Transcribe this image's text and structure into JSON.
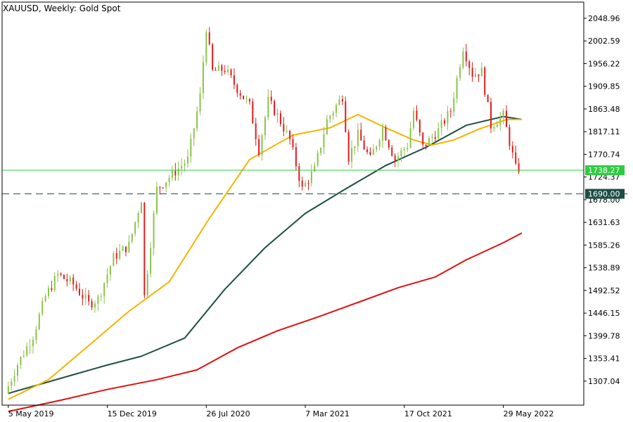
{
  "header": {
    "title": "XAUUSD, Weekly:  Gold Spot"
  },
  "colors": {
    "up": "#8bc34a",
    "down": "#e01b1b",
    "ma_fast": "#f5b400",
    "ma_mid": "#1c4e45",
    "ma_slow": "#e01010",
    "current_line": "#2ecc40",
    "level_line": "#1c4e45",
    "axis": "#000000"
  },
  "chart_data": {
    "type": "candlestick",
    "symbol": "XAUUSD",
    "timeframe": "Weekly",
    "description": "Gold Spot",
    "y_ticks": [
      "2048.96",
      "2002.59",
      "1956.22",
      "1909.85",
      "1863.48",
      "1817.11",
      "1770.74",
      "1724.37",
      "1678.00",
      "1631.63",
      "1585.26",
      "1538.89",
      "1492.52",
      "1446.15",
      "1399.78",
      "1353.41",
      "1307.04"
    ],
    "x_ticks": [
      "5 May 2019",
      "15 Dec 2019",
      "26 Jul 2020",
      "7 Mar 2021",
      "17 Oct 2021",
      "29 May 2022"
    ],
    "ylim": [
      1258,
      2082
    ],
    "current_price": "1738.27",
    "level_price": "1690.00",
    "anchors": [
      [
        "2019-05-05",
        1282
      ],
      [
        "2019-06-02",
        1342
      ],
      [
        "2019-07-07",
        1400
      ],
      [
        "2019-08-04",
        1480
      ],
      [
        "2019-09-01",
        1525
      ],
      [
        "2019-10-06",
        1505
      ],
      [
        "2019-11-10",
        1465
      ],
      [
        "2019-12-01",
        1475
      ],
      [
        "2020-01-05",
        1560
      ],
      [
        "2020-02-09",
        1585
      ],
      [
        "2020-03-08",
        1680
      ],
      [
        "2020-03-15",
        1480
      ],
      [
        "2020-04-12",
        1700
      ],
      [
        "2020-05-17",
        1730
      ],
      [
        "2020-06-21",
        1760
      ],
      [
        "2020-07-19",
        1890
      ],
      [
        "2020-08-02",
        2030
      ],
      [
        "2020-08-16",
        1940
      ],
      [
        "2020-09-13",
        1945
      ],
      [
        "2020-10-11",
        1905
      ],
      [
        "2020-11-08",
        1870
      ],
      [
        "2020-11-29",
        1780
      ],
      [
        "2020-12-20",
        1880
      ],
      [
        "2021-01-10",
        1850
      ],
      [
        "2021-02-07",
        1800
      ],
      [
        "2021-03-07",
        1700
      ],
      [
        "2021-04-04",
        1740
      ],
      [
        "2021-05-02",
        1840
      ],
      [
        "2021-06-06",
        1890
      ],
      [
        "2021-06-20",
        1765
      ],
      [
        "2021-07-11",
        1810
      ],
      [
        "2021-08-08",
        1760
      ],
      [
        "2021-09-05",
        1825
      ],
      [
        "2021-10-03",
        1760
      ],
      [
        "2021-10-31",
        1790
      ],
      [
        "2021-11-14",
        1860
      ],
      [
        "2021-12-05",
        1785
      ],
      [
        "2022-01-09",
        1820
      ],
      [
        "2022-02-06",
        1860
      ],
      [
        "2022-03-06",
        1990
      ],
      [
        "2022-03-27",
        1935
      ],
      [
        "2022-04-17",
        1940
      ],
      [
        "2022-05-08",
        1830
      ],
      [
        "2022-06-05",
        1850
      ],
      [
        "2022-07-03",
        1742
      ]
    ],
    "ma_fast": [
      [
        "2019-05-05",
        1270
      ],
      [
        "2019-08-04",
        1310
      ],
      [
        "2019-11-03",
        1380
      ],
      [
        "2020-02-02",
        1450
      ],
      [
        "2020-05-03",
        1510
      ],
      [
        "2020-08-02",
        1640
      ],
      [
        "2020-11-01",
        1760
      ],
      [
        "2021-02-07",
        1810
      ],
      [
        "2021-05-02",
        1825
      ],
      [
        "2021-07-04",
        1852
      ],
      [
        "2021-09-05",
        1825
      ],
      [
        "2021-11-07",
        1800
      ],
      [
        "2021-12-19",
        1790
      ],
      [
        "2022-02-06",
        1800
      ],
      [
        "2022-04-03",
        1822
      ],
      [
        "2022-06-05",
        1842
      ],
      [
        "2022-07-10",
        1842
      ]
    ],
    "ma_mid": [
      [
        "2019-05-05",
        1282
      ],
      [
        "2019-10-06",
        1322
      ],
      [
        "2019-12-15",
        1340
      ],
      [
        "2020-03-01",
        1358
      ],
      [
        "2020-06-07",
        1395
      ],
      [
        "2020-09-06",
        1495
      ],
      [
        "2020-12-06",
        1580
      ],
      [
        "2021-03-07",
        1650
      ],
      [
        "2021-06-06",
        1700
      ],
      [
        "2021-09-05",
        1748
      ],
      [
        "2021-12-05",
        1785
      ],
      [
        "2022-03-06",
        1830
      ],
      [
        "2022-05-29",
        1848
      ],
      [
        "2022-07-10",
        1842
      ]
    ],
    "ma_slow": [
      [
        "2019-05-05",
        1245
      ],
      [
        "2019-09-01",
        1268
      ],
      [
        "2019-12-15",
        1290
      ],
      [
        "2020-04-05",
        1310
      ],
      [
        "2020-07-05",
        1330
      ],
      [
        "2020-10-04",
        1375
      ],
      [
        "2021-01-03",
        1410
      ],
      [
        "2021-04-04",
        1438
      ],
      [
        "2021-07-04",
        1468
      ],
      [
        "2021-10-03",
        1498
      ],
      [
        "2021-12-26",
        1520
      ],
      [
        "2022-03-06",
        1555
      ],
      [
        "2022-05-29",
        1590
      ],
      [
        "2022-07-10",
        1610
      ]
    ]
  }
}
